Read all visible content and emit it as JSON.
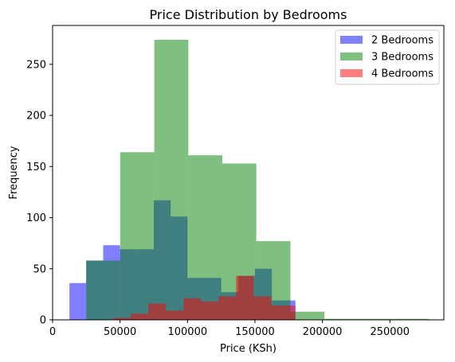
{
  "chart_data": {
    "type": "bar",
    "title": "Price Distribution by Bedrooms",
    "xlabel": "Price (KSh)",
    "ylabel": "Frequency",
    "xlim": [
      0,
      290000
    ],
    "ylim": [
      0,
      288
    ],
    "xticks": [
      0,
      50000,
      100000,
      150000,
      200000,
      250000
    ],
    "yticks": [
      0,
      50,
      100,
      150,
      200,
      250
    ],
    "grid": false,
    "legend_position": "top-right",
    "series": [
      {
        "name": "2 Bedrooms",
        "color": "#0000ff",
        "opacity": 0.5,
        "bins": [
          {
            "x0": 12500,
            "x1": 24900,
            "count": 36
          },
          {
            "x0": 24900,
            "x1": 37500,
            "count": 58
          },
          {
            "x0": 37500,
            "x1": 50000,
            "count": 73
          },
          {
            "x0": 50000,
            "x1": 62500,
            "count": 69
          },
          {
            "x0": 62500,
            "x1": 75000,
            "count": 69
          },
          {
            "x0": 75000,
            "x1": 87500,
            "count": 117
          },
          {
            "x0": 87500,
            "x1": 100000,
            "count": 101
          },
          {
            "x0": 100000,
            "x1": 112500,
            "count": 41
          },
          {
            "x0": 112500,
            "x1": 125000,
            "count": 41
          },
          {
            "x0": 125000,
            "x1": 137500,
            "count": 27
          },
          {
            "x0": 137500,
            "x1": 150000,
            "count": 43
          },
          {
            "x0": 150000,
            "x1": 162500,
            "count": 50
          },
          {
            "x0": 162500,
            "x1": 175000,
            "count": 19
          },
          {
            "x0": 175000,
            "x1": 180000,
            "count": 19
          }
        ]
      },
      {
        "name": "3 Bedrooms",
        "color": "#008000",
        "opacity": 0.5,
        "bins": [
          {
            "x0": 24900,
            "x1": 50100,
            "count": 58
          },
          {
            "x0": 50100,
            "x1": 75400,
            "count": 164
          },
          {
            "x0": 75400,
            "x1": 100600,
            "count": 274
          },
          {
            "x0": 100600,
            "x1": 125800,
            "count": 161
          },
          {
            "x0": 125800,
            "x1": 151000,
            "count": 153
          },
          {
            "x0": 151000,
            "x1": 176300,
            "count": 77
          },
          {
            "x0": 176300,
            "x1": 201500,
            "count": 8
          },
          {
            "x0": 201500,
            "x1": 226700,
            "count": 1
          },
          {
            "x0": 226700,
            "x1": 251900,
            "count": 1
          },
          {
            "x0": 251900,
            "x1": 279000,
            "count": 1
          }
        ]
      },
      {
        "name": "4 Bedrooms",
        "color": "#ff0000",
        "opacity": 0.5,
        "bins": [
          {
            "x0": 45000,
            "x1": 58000,
            "count": 2
          },
          {
            "x0": 58000,
            "x1": 71000,
            "count": 6
          },
          {
            "x0": 71000,
            "x1": 84000,
            "count": 16
          },
          {
            "x0": 84000,
            "x1": 97000,
            "count": 9
          },
          {
            "x0": 97000,
            "x1": 110000,
            "count": 21
          },
          {
            "x0": 110000,
            "x1": 123000,
            "count": 18
          },
          {
            "x0": 123000,
            "x1": 136000,
            "count": 23
          },
          {
            "x0": 136000,
            "x1": 149000,
            "count": 43
          },
          {
            "x0": 149000,
            "x1": 162000,
            "count": 23
          },
          {
            "x0": 162000,
            "x1": 175000,
            "count": 14
          },
          {
            "x0": 175000,
            "x1": 180000,
            "count": 14
          }
        ]
      }
    ]
  }
}
